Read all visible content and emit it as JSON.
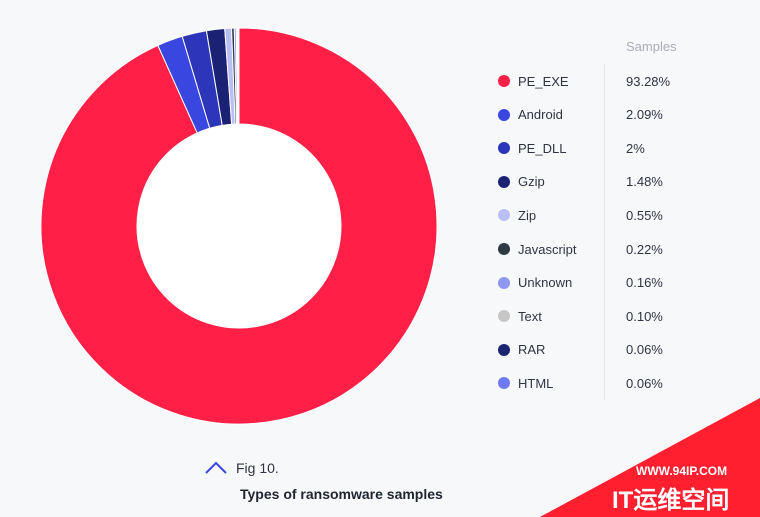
{
  "chart_data": {
    "type": "pie",
    "legend_header": "Samples",
    "legend_position": "right",
    "slices": [
      {
        "label": "PE_EXE",
        "value": 93.28,
        "value_label": "93.28%",
        "color": "#ff1f47"
      },
      {
        "label": "Android",
        "value": 2.09,
        "value_label": "2.09%",
        "color": "#3a46e0"
      },
      {
        "label": "PE_DLL",
        "value": 2.0,
        "value_label": "2%",
        "color": "#2d36b8"
      },
      {
        "label": "Gzip",
        "value": 1.48,
        "value_label": "1.48%",
        "color": "#1b2274"
      },
      {
        "label": "Zip",
        "value": 0.55,
        "value_label": "0.55%",
        "color": "#b9bff5"
      },
      {
        "label": "Javascript",
        "value": 0.22,
        "value_label": "0.22%",
        "color": "#2f3944"
      },
      {
        "label": "Unknown",
        "value": 0.16,
        "value_label": "0.16%",
        "color": "#8f97f2"
      },
      {
        "label": "Text",
        "value": 0.1,
        "value_label": "0.10%",
        "color": "#c6c6c6"
      },
      {
        "label": "RAR",
        "value": 0.06,
        "value_label": "0.06%",
        "color": "#1c2570"
      },
      {
        "label": "HTML",
        "value": 0.06,
        "value_label": "0.06%",
        "color": "#6e79f5"
      }
    ]
  },
  "caption": {
    "figure_number": "Fig 10.",
    "title": "Types of ransomware samples",
    "icon": "chevron-up-icon",
    "accent_color": "#3a46e0"
  },
  "watermark": {
    "url": "WWW.94IP.COM",
    "brand": "IT运维空间",
    "color": "#ff1f2f"
  }
}
